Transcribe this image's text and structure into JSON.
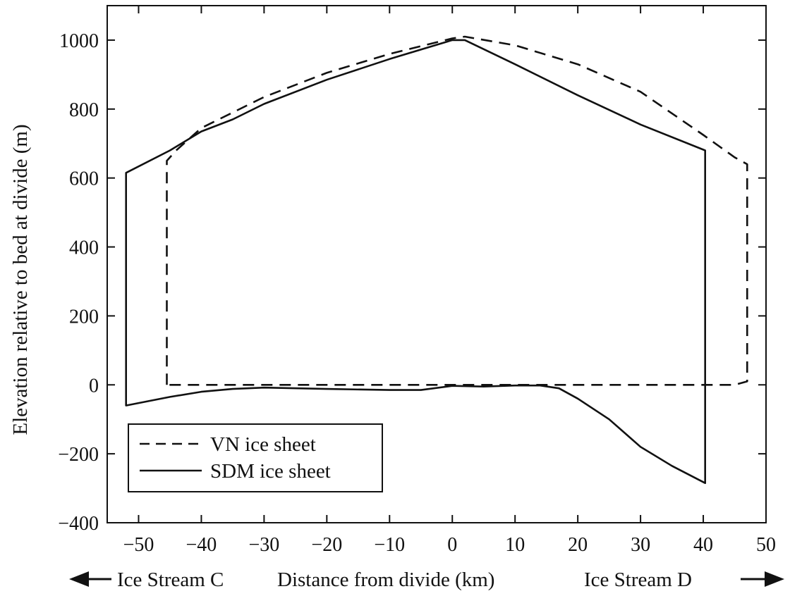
{
  "chart_data": {
    "type": "line",
    "xlabel": "Distance from divide (km)",
    "ylabel": "Elevation relative to bed at divide (m)",
    "xlabel_left": "Ice Stream C",
    "xlabel_right": "Ice Stream D",
    "xlim": [
      -55,
      50
    ],
    "ylim": [
      -400,
      1100
    ],
    "xticks": [
      -50,
      -40,
      -30,
      -20,
      -10,
      0,
      10,
      20,
      30,
      40,
      50
    ],
    "yticks": [
      -400,
      -200,
      0,
      200,
      400,
      600,
      800,
      1000
    ],
    "legend_position": "bottom-left",
    "series": [
      {
        "name": "VN ice sheet",
        "style": "dashed",
        "color": "#111111",
        "x": [
          -45.5,
          -45.5,
          -44,
          -40,
          -35,
          -30,
          -20,
          -10,
          0,
          2,
          10,
          20,
          30,
          40,
          45,
          47,
          47,
          45,
          40,
          30,
          20,
          10,
          0,
          -10,
          -20,
          -30,
          -40,
          -45.5
        ],
        "y": [
          0,
          650,
          680,
          745,
          790,
          835,
          905,
          960,
          1005,
          1010,
          985,
          930,
          850,
          725,
          660,
          640,
          10,
          0,
          0,
          0,
          0,
          0,
          0,
          0,
          0,
          0,
          0,
          0
        ]
      },
      {
        "name": "SDM ice sheet",
        "style": "solid",
        "color": "#111111",
        "x": [
          -52,
          -52,
          -45,
          -40,
          -35,
          -30,
          -20,
          -10,
          0,
          2,
          10,
          20,
          30,
          40.3,
          40.3,
          35,
          30,
          25,
          20,
          17,
          14,
          10,
          5,
          0,
          -5,
          -10,
          -20,
          -30,
          -35,
          -40,
          -45,
          -52
        ],
        "y": [
          -60,
          615,
          680,
          735,
          770,
          815,
          885,
          945,
          1000,
          1000,
          930,
          840,
          755,
          680,
          -285,
          -235,
          -180,
          -100,
          -40,
          -10,
          -2,
          -2,
          -5,
          -3,
          -15,
          -15,
          -12,
          -8,
          -12,
          -20,
          -35,
          -60
        ]
      }
    ]
  }
}
